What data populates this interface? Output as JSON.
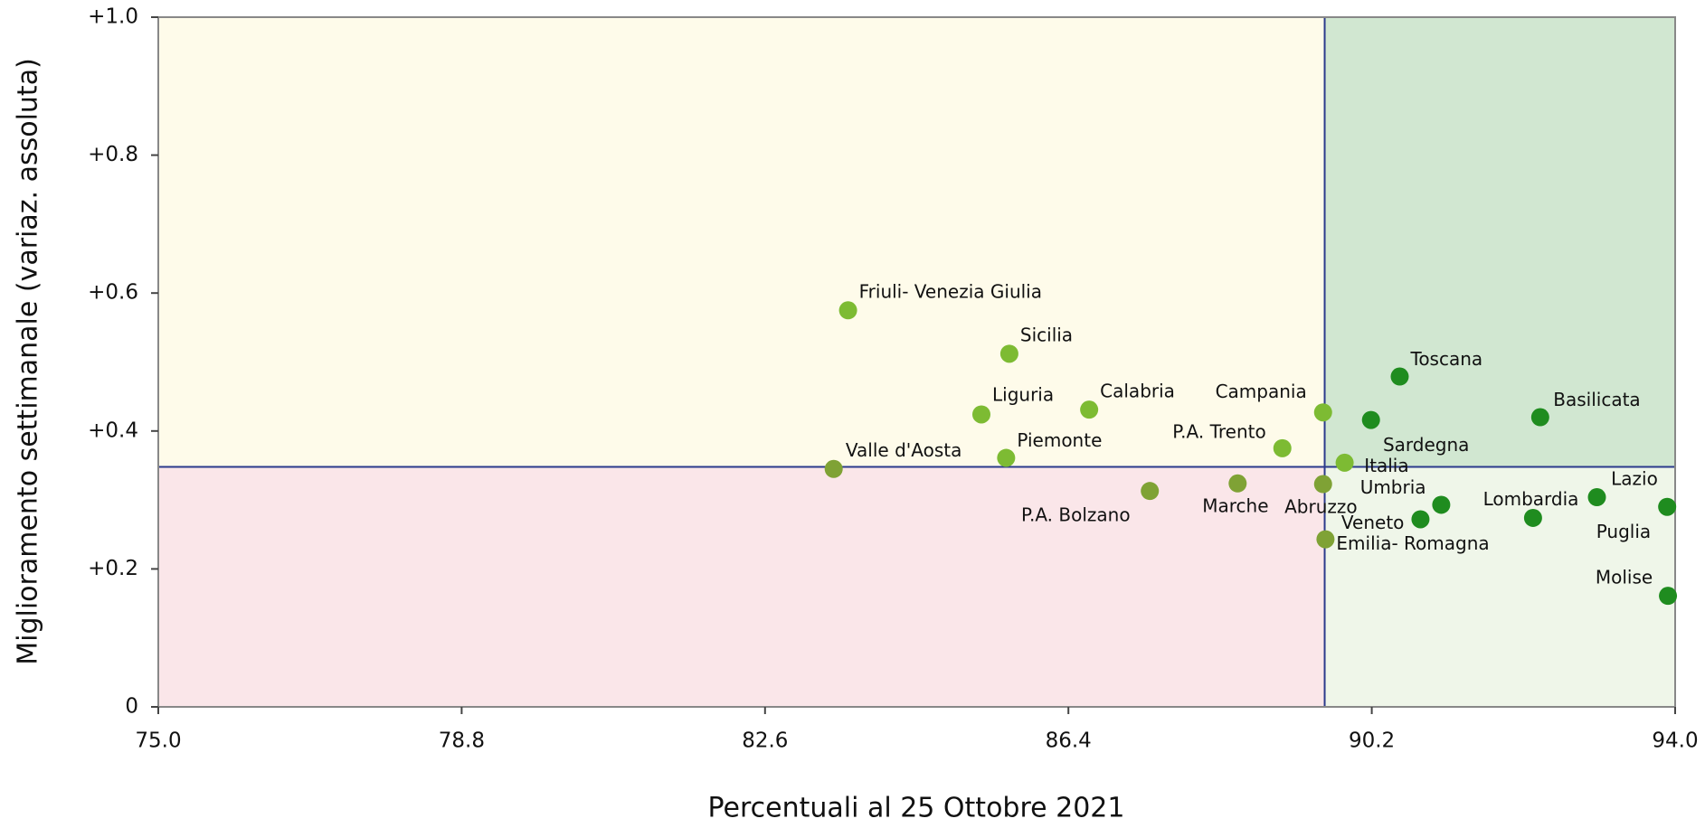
{
  "chart_data": {
    "type": "scatter",
    "xlabel": "Percentuali al 25 Ottobre 2021",
    "ylabel": "Miglioramento settimanale (variaz. assoluta)",
    "labels": [
      "Friuli- Venezia Giulia",
      "Sicilia",
      "Liguria",
      "Calabria",
      "Piemonte",
      "Valle d'Aosta",
      "P.A. Bolzano",
      "Marche",
      "P.A. Trento",
      "Campania",
      "Abruzzo",
      "Emilia- Romagna",
      "Italia",
      "Sardegna",
      "Toscana",
      "Umbria",
      "Veneto",
      "Basilicata",
      "Lombardia",
      "Lazio",
      "Puglia",
      "Molise"
    ],
    "x": [
      83.64,
      85.66,
      85.31,
      86.66,
      85.62,
      83.46,
      87.42,
      88.52,
      89.08,
      89.59,
      89.59,
      89.62,
      89.86,
      90.19,
      90.55,
      91.07,
      90.81,
      92.31,
      92.22,
      93.02,
      93.9,
      93.91
    ],
    "y": [
      0.575,
      0.512,
      0.424,
      0.431,
      0.361,
      0.345,
      0.313,
      0.324,
      0.375,
      0.427,
      0.323,
      0.243,
      0.354,
      0.416,
      0.479,
      0.293,
      0.272,
      0.42,
      0.274,
      0.304,
      0.29,
      0.161
    ],
    "colors": [
      "#7dbb33",
      "#7dbb33",
      "#7dbb33",
      "#7dbb33",
      "#7dbb33",
      "#7fa235",
      "#7fa235",
      "#7fa235",
      "#7dbb33",
      "#7dbb33",
      "#7fa235",
      "#7fa235",
      "#7dbb33",
      "#1f8c1f",
      "#1f8c1f",
      "#1f8c1f",
      "#1f8c1f",
      "#1f8c1f",
      "#1f8c1f",
      "#1f8c1f",
      "#1f8c1f",
      "#1f8c1f"
    ],
    "reference_lines": {
      "x": 89.61,
      "y": 0.348,
      "color": "#2b3a8c"
    },
    "quadrant_colors": {
      "upper_left": "#fefbea",
      "lower_left": "#fae6e9",
      "upper_right": "#d1e7d1",
      "lower_right": "#eff6e9"
    },
    "xlim": [
      75,
      94
    ],
    "ylim": [
      0,
      1
    ],
    "xticks": [
      {
        "value": 75,
        "label": "75.0"
      },
      78.8,
      82.6,
      86.4,
      90.2,
      {
        "value": 94,
        "label": "94.0"
      }
    ],
    "yticks": [
      0,
      {
        "value": 0.2,
        "label": "+0.2"
      },
      {
        "value": 0.4,
        "label": "+0.4"
      },
      {
        "value": 0.6,
        "label": "+0.6"
      },
      {
        "value": 0.8,
        "label": "+0.8"
      },
      {
        "value": 1,
        "label": "+1.0"
      }
    ]
  }
}
